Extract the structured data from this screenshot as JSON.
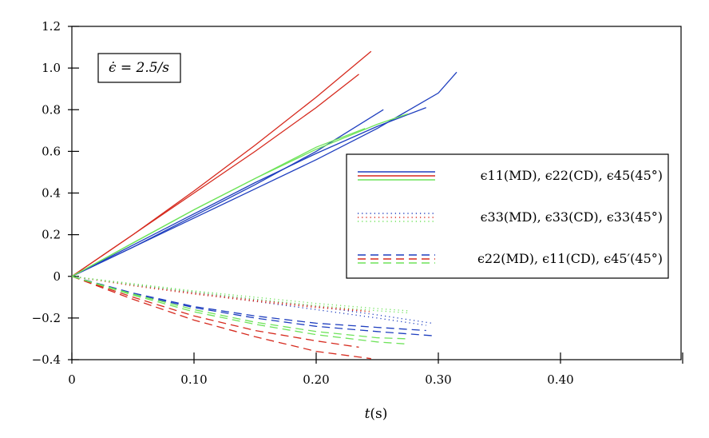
{
  "chart_data": {
    "type": "line",
    "xlabel": "t(s)",
    "ylabel": "",
    "xlim": [
      0,
      0.5
    ],
    "ylim": [
      -0.4,
      1.2
    ],
    "x_ticks": [
      {
        "value": 0,
        "label": "0"
      },
      {
        "value": 0.1,
        "label": "0.10"
      },
      {
        "value": 0.2,
        "label": "0.20"
      },
      {
        "value": 0.3,
        "label": "0.30"
      },
      {
        "value": 0.4,
        "label": "0.40"
      }
    ],
    "y_ticks": [
      {
        "value": -0.4,
        "label": "−0.4"
      },
      {
        "value": -0.2,
        "label": "−0.2"
      },
      {
        "value": 0,
        "label": "0"
      },
      {
        "value": 0.2,
        "label": "0.2"
      },
      {
        "value": 0.4,
        "label": "0.4"
      },
      {
        "value": 0.6,
        "label": "0.6"
      },
      {
        "value": 0.8,
        "label": "0.8"
      },
      {
        "value": 1.0,
        "label": "1.0"
      },
      {
        "value": 1.2,
        "label": "1.2"
      }
    ],
    "annotation": "ϵ̇ = 2.5/s",
    "grid": false,
    "legend_position": "right",
    "legend": [
      {
        "text": "ϵ11(MD), ϵ22(CD), ϵ45(45°)",
        "style": "solid",
        "colors": [
          "#1f3fbf",
          "#d62a1e",
          "#6ee35a"
        ]
      },
      {
        "text": "ϵ33(MD), ϵ33(CD), ϵ33(45°)",
        "style": "dotted",
        "colors": [
          "#1f3fbf",
          "#d62a1e",
          "#6ee35a"
        ]
      },
      {
        "text": "ϵ22(MD), ϵ11(CD), ϵ45′(45°)",
        "style": "dashed",
        "colors": [
          "#1f3fbf",
          "#d62a1e",
          "#6ee35a"
        ]
      }
    ],
    "series": [
      {
        "color": "#1f3fbf",
        "style": "solid",
        "x": [
          0,
          0.05,
          0.1,
          0.15,
          0.2,
          0.25,
          0.29
        ],
        "y": [
          0,
          0.15,
          0.3,
          0.45,
          0.59,
          0.72,
          0.81
        ]
      },
      {
        "color": "#1f3fbf",
        "style": "solid",
        "x": [
          0,
          0.05,
          0.1,
          0.15,
          0.2,
          0.25,
          0.3,
          0.315
        ],
        "y": [
          0,
          0.14,
          0.28,
          0.42,
          0.56,
          0.71,
          0.88,
          0.98
        ]
      },
      {
        "color": "#1f3fbf",
        "style": "solid",
        "x": [
          0,
          0.05,
          0.1,
          0.15,
          0.2,
          0.255
        ],
        "y": [
          0,
          0.14,
          0.29,
          0.44,
          0.6,
          0.8
        ]
      },
      {
        "color": "#d62a1e",
        "style": "solid",
        "x": [
          0,
          0.05,
          0.1,
          0.15,
          0.2,
          0.245
        ],
        "y": [
          0,
          0.2,
          0.41,
          0.63,
          0.86,
          1.08
        ]
      },
      {
        "color": "#d62a1e",
        "style": "solid",
        "x": [
          0,
          0.05,
          0.1,
          0.15,
          0.2,
          0.235
        ],
        "y": [
          0,
          0.2,
          0.4,
          0.6,
          0.81,
          0.97
        ]
      },
      {
        "color": "#6ee35a",
        "style": "solid",
        "x": [
          0,
          0.05,
          0.1,
          0.15,
          0.2,
          0.25,
          0.275
        ],
        "y": [
          0,
          0.16,
          0.32,
          0.47,
          0.61,
          0.73,
          0.78
        ]
      },
      {
        "color": "#6ee35a",
        "style": "solid",
        "x": [
          0,
          0.05,
          0.1,
          0.15,
          0.2,
          0.24
        ],
        "y": [
          0,
          0.16,
          0.32,
          0.47,
          0.62,
          0.71
        ]
      },
      {
        "color": "#1f3fbf",
        "style": "dotted",
        "x": [
          0,
          0.05,
          0.1,
          0.15,
          0.2,
          0.25,
          0.295
        ],
        "y": [
          0,
          -0.04,
          -0.075,
          -0.11,
          -0.145,
          -0.185,
          -0.225
        ]
      },
      {
        "color": "#1f3fbf",
        "style": "dotted",
        "x": [
          0,
          0.05,
          0.1,
          0.15,
          0.2,
          0.25,
          0.29
        ],
        "y": [
          0,
          -0.04,
          -0.08,
          -0.12,
          -0.16,
          -0.2,
          -0.235
        ]
      },
      {
        "color": "#d62a1e",
        "style": "dotted",
        "x": [
          0,
          0.05,
          0.1,
          0.15,
          0.2,
          0.245
        ],
        "y": [
          0,
          -0.045,
          -0.085,
          -0.12,
          -0.15,
          -0.17
        ]
      },
      {
        "color": "#d62a1e",
        "style": "dotted",
        "x": [
          0,
          0.05,
          0.1,
          0.15,
          0.2,
          0.24
        ],
        "y": [
          0,
          -0.04,
          -0.08,
          -0.115,
          -0.145,
          -0.165
        ]
      },
      {
        "color": "#6ee35a",
        "style": "dotted",
        "x": [
          0,
          0.05,
          0.1,
          0.15,
          0.2,
          0.25,
          0.275
        ],
        "y": [
          0,
          -0.035,
          -0.07,
          -0.1,
          -0.13,
          -0.155,
          -0.165
        ]
      },
      {
        "color": "#6ee35a",
        "style": "dotted",
        "x": [
          0,
          0.05,
          0.1,
          0.15,
          0.2,
          0.25,
          0.275
        ],
        "y": [
          0,
          -0.04,
          -0.075,
          -0.11,
          -0.14,
          -0.165,
          -0.175
        ]
      },
      {
        "color": "#1f3fbf",
        "style": "dashed",
        "x": [
          0,
          0.05,
          0.1,
          0.15,
          0.2,
          0.25,
          0.295
        ],
        "y": [
          0,
          -0.085,
          -0.15,
          -0.2,
          -0.24,
          -0.265,
          -0.285
        ]
      },
      {
        "color": "#1f3fbf",
        "style": "dashed",
        "x": [
          0,
          0.05,
          0.1,
          0.15,
          0.2,
          0.25,
          0.29
        ],
        "y": [
          0,
          -0.08,
          -0.145,
          -0.19,
          -0.225,
          -0.245,
          -0.26
        ]
      },
      {
        "color": "#d62a1e",
        "style": "dashed",
        "x": [
          0,
          0.05,
          0.1,
          0.15,
          0.2,
          0.245
        ],
        "y": [
          0,
          -0.11,
          -0.21,
          -0.29,
          -0.36,
          -0.395
        ]
      },
      {
        "color": "#d62a1e",
        "style": "dashed",
        "x": [
          0,
          0.05,
          0.1,
          0.15,
          0.2,
          0.235
        ],
        "y": [
          0,
          -0.1,
          -0.19,
          -0.26,
          -0.31,
          -0.34
        ]
      },
      {
        "color": "#6ee35a",
        "style": "dashed",
        "x": [
          0,
          0.05,
          0.1,
          0.15,
          0.2,
          0.25,
          0.275
        ],
        "y": [
          0,
          -0.09,
          -0.17,
          -0.23,
          -0.28,
          -0.315,
          -0.325
        ]
      },
      {
        "color": "#6ee35a",
        "style": "dashed",
        "x": [
          0,
          0.05,
          0.1,
          0.15,
          0.2,
          0.25,
          0.275
        ],
        "y": [
          0,
          -0.085,
          -0.16,
          -0.22,
          -0.265,
          -0.295,
          -0.3
        ]
      }
    ]
  }
}
